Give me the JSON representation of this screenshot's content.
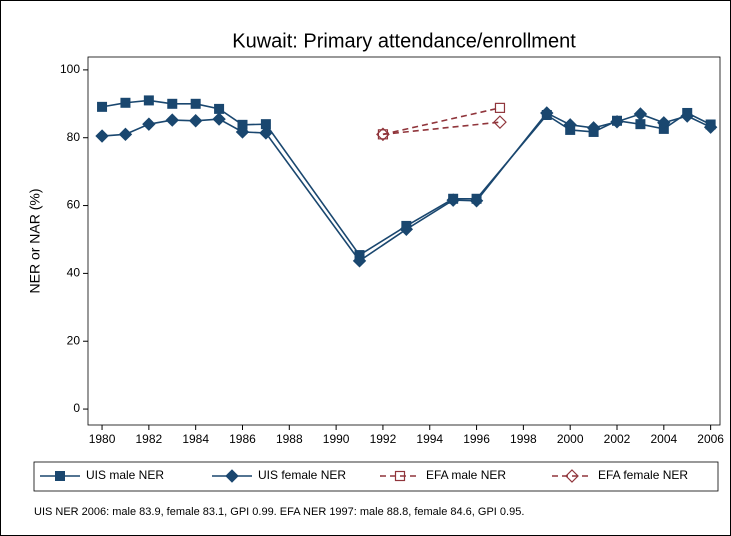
{
  "chart_data": {
    "type": "line",
    "title": "Kuwait: Primary attendance/enrollment",
    "y_label": "NER or NAR (%)",
    "note": "UIS NER 2006: male 83.9, female 83.1, GPI 0.99. EFA NER 1997: male 88.8, female 84.6, GPI 0.95.",
    "xlim": [
      1979.4,
      2006.4
    ],
    "xticks": [
      1980,
      1982,
      1984,
      1986,
      1988,
      1990,
      1992,
      1994,
      1996,
      1998,
      2000,
      2002,
      2004,
      2006
    ],
    "ylim": [
      -4.7,
      103.8
    ],
    "yticks": [
      0,
      20,
      40,
      60,
      80,
      100
    ],
    "series": [
      {
        "name": "UIS male NER",
        "color": "#1a476f",
        "marker": "square",
        "dashed": false,
        "x": [
          1980,
          1981,
          1982,
          1983,
          1984,
          1985,
          1986,
          1987,
          1991,
          1993,
          1995,
          1996,
          1999,
          2000,
          2001,
          2002,
          2003,
          2004,
          2005,
          2006
        ],
        "values": [
          89.1,
          90.3,
          91,
          90,
          90,
          88.5,
          83.8,
          84,
          45.4,
          54,
          62,
          62,
          86.7,
          82.3,
          81.7,
          85,
          84,
          82.6,
          87.3,
          83.9
        ]
      },
      {
        "name": "UIS female NER",
        "color": "#1a476f",
        "marker": "diamond",
        "dashed": false,
        "x": [
          1980,
          1981,
          1982,
          1983,
          1984,
          1985,
          1986,
          1987,
          1991,
          1993,
          1995,
          1996,
          1999,
          2000,
          2001,
          2002,
          2003,
          2004,
          2005,
          2006
        ],
        "values": [
          80.5,
          81,
          84,
          85.2,
          85,
          85.5,
          81.7,
          81.4,
          43.7,
          53,
          61.6,
          61.4,
          87.3,
          83.8,
          82.9,
          84.7,
          87,
          84.4,
          86.4,
          83.1
        ]
      },
      {
        "name": "EFA male NER",
        "color": "#90353b",
        "marker": "square-hollow",
        "dashed": true,
        "x": [
          1992,
          1997
        ],
        "values": [
          81,
          88.8
        ]
      },
      {
        "name": "EFA female NER",
        "color": "#90353b",
        "marker": "diamond-hollow",
        "dashed": true,
        "x": [
          1992,
          1997
        ],
        "values": [
          81,
          84.6
        ]
      }
    ]
  }
}
